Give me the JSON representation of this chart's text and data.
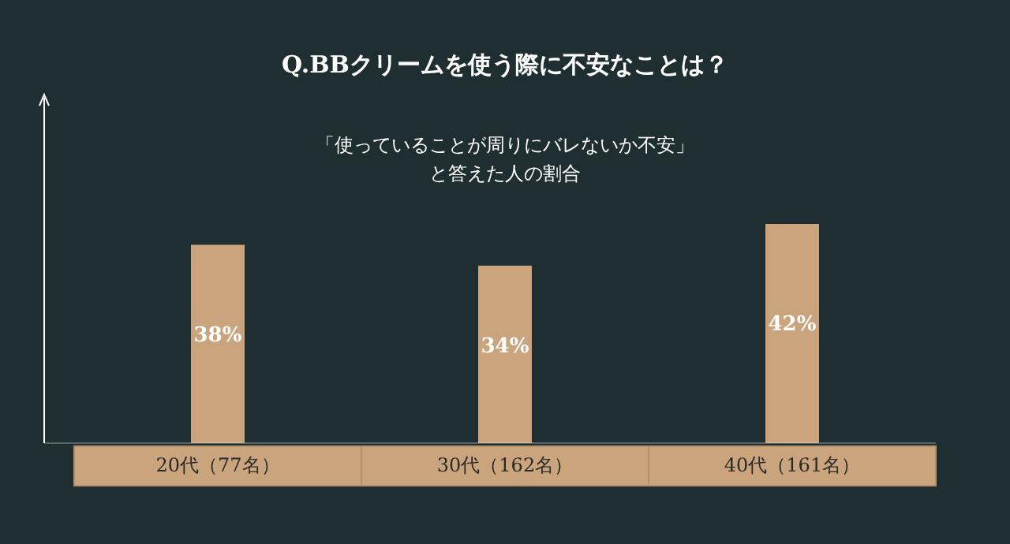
{
  "chart_data": {
    "type": "bar",
    "title": "Q.BBクリームを使う際に不安なことは？",
    "subtitle": "「使っていることが周りにバレないか不安」",
    "annotations": [
      "と答えた人の割合"
    ],
    "categories": [
      "20代（77名）",
      "30代（162名）",
      "40代（161名）"
    ],
    "values": [
      38,
      34,
      42
    ],
    "value_labels": [
      "38%",
      "34%",
      "42%"
    ],
    "color": "#c9a47c"
  }
}
